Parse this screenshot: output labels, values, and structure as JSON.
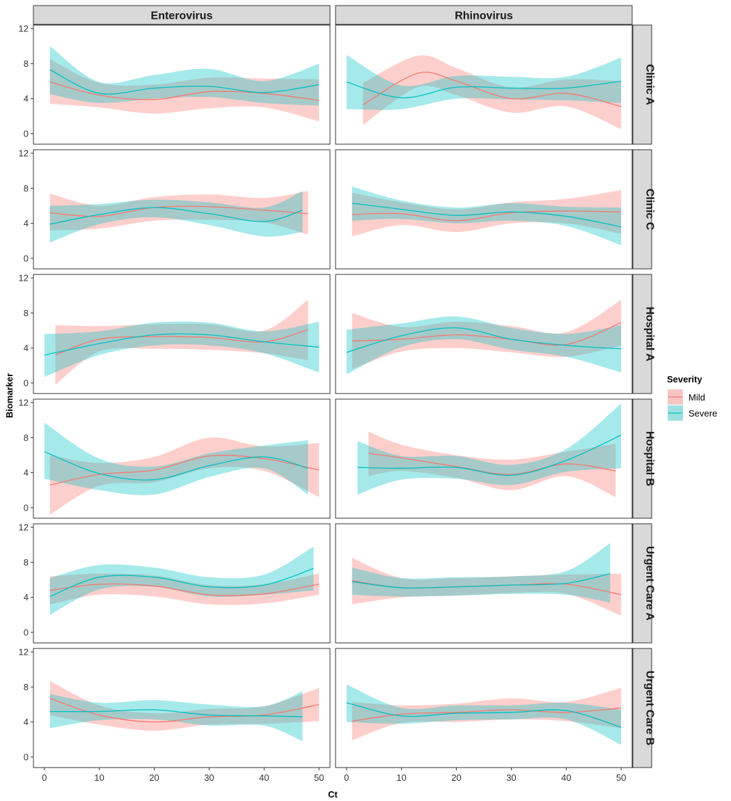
{
  "chart_data": {
    "type": "line",
    "title": "",
    "xlabel": "Ct",
    "ylabel": "Biomarker",
    "xlim": [
      -2,
      52
    ],
    "ylim": [
      -1.2,
      12.4
    ],
    "xticks": [
      0,
      10,
      20,
      30,
      40,
      50
    ],
    "yticks": [
      0,
      4,
      8,
      12
    ],
    "grid": false,
    "columns": [
      "Enterovirus",
      "Rhinovirus"
    ],
    "rows": [
      "Clinic A",
      "Clinic C",
      "Hospital A",
      "Hospital B",
      "Urgent Care A",
      "Urgent Care B"
    ],
    "legend": {
      "title": "Severity",
      "position": "right",
      "entries": [
        {
          "name": "Mild",
          "line_color": "#F8766D",
          "fill_color": "#F8766D"
        },
        {
          "name": "Severe",
          "line_color": "#00BFC4",
          "fill_color": "#00BFC4"
        }
      ]
    },
    "panels": [
      {
        "row": "Clinic A",
        "column": "Enterovirus",
        "series": [
          {
            "name": "Mild",
            "x": [
              1,
              10,
              20,
              30,
              40,
              50
            ],
            "y": [
              5.9,
              4.4,
              3.9,
              4.8,
              4.6,
              3.8
            ],
            "lower": [
              3.4,
              3.0,
              2.3,
              2.9,
              3.0,
              1.4
            ],
            "upper": [
              8.5,
              5.8,
              5.6,
              6.4,
              6.3,
              6.2
            ]
          },
          {
            "name": "Severe",
            "x": [
              1,
              10,
              20,
              30,
              40,
              50
            ],
            "y": [
              7.3,
              4.6,
              5.2,
              5.4,
              4.7,
              5.6
            ],
            "lower": [
              4.5,
              3.5,
              4.0,
              4.2,
              3.5,
              3.2
            ],
            "upper": [
              10.0,
              5.9,
              6.7,
              7.4,
              6.0,
              8.0
            ]
          }
        ]
      },
      {
        "row": "Clinic A",
        "column": "Rhinovirus",
        "series": [
          {
            "name": "Mild",
            "x": [
              3,
              13,
              20,
              30,
              40,
              50
            ],
            "y": [
              3.3,
              6.9,
              6.0,
              4.0,
              4.6,
              3.1
            ],
            "lower": [
              1.0,
              5.3,
              4.4,
              2.4,
              3.1,
              0.5
            ],
            "upper": [
              5.8,
              8.9,
              7.5,
              5.3,
              6.2,
              6.0
            ]
          },
          {
            "name": "Severe",
            "x": [
              0,
              10,
              20,
              30,
              40,
              50
            ],
            "y": [
              5.9,
              4.1,
              5.3,
              5.2,
              5.2,
              6.0
            ],
            "lower": [
              2.8,
              2.8,
              4.0,
              3.9,
              3.8,
              3.5
            ],
            "upper": [
              9.0,
              5.5,
              6.6,
              6.5,
              6.5,
              8.7
            ]
          }
        ]
      },
      {
        "row": "Clinic C",
        "column": "Enterovirus",
        "series": [
          {
            "name": "Mild",
            "x": [
              1,
              10,
              20,
              30,
              40,
              48
            ],
            "y": [
              5.2,
              4.8,
              5.8,
              5.9,
              5.5,
              5.1
            ],
            "lower": [
              3.2,
              3.4,
              4.3,
              4.4,
              4.1,
              2.7
            ],
            "upper": [
              7.4,
              6.0,
              7.0,
              7.3,
              6.9,
              7.7
            ]
          },
          {
            "name": "Severe",
            "x": [
              1,
              10,
              20,
              30,
              40,
              47
            ],
            "y": [
              3.9,
              5.0,
              5.8,
              5.1,
              4.2,
              5.5
            ],
            "lower": [
              1.8,
              3.9,
              4.7,
              3.8,
              2.5,
              3.0
            ],
            "upper": [
              6.0,
              6.2,
              6.7,
              6.4,
              5.8,
              7.7
            ]
          }
        ]
      },
      {
        "row": "Clinic C",
        "column": "Rhinovirus",
        "series": [
          {
            "name": "Mild",
            "x": [
              1,
              10,
              20,
              30,
              40,
              50
            ],
            "y": [
              5.0,
              5.1,
              4.3,
              5.2,
              5.4,
              5.3
            ],
            "lower": [
              2.5,
              3.8,
              3.0,
              4.0,
              4.0,
              2.8
            ],
            "upper": [
              7.5,
              6.4,
              5.6,
              6.4,
              6.8,
              7.8
            ]
          },
          {
            "name": "Severe",
            "x": [
              1,
              10,
              20,
              30,
              40,
              50
            ],
            "y": [
              6.3,
              5.6,
              4.9,
              5.3,
              4.8,
              3.6
            ],
            "lower": [
              4.3,
              4.5,
              4.0,
              4.3,
              3.7,
              1.5
            ],
            "upper": [
              8.2,
              6.6,
              5.8,
              6.3,
              5.9,
              5.8
            ]
          }
        ]
      },
      {
        "row": "Hospital A",
        "column": "Enterovirus",
        "series": [
          {
            "name": "Mild",
            "x": [
              2,
              10,
              20,
              30,
              40,
              48
            ],
            "y": [
              3.2,
              5.0,
              5.3,
              5.2,
              4.7,
              6.1
            ],
            "lower": [
              -0.2,
              3.6,
              3.9,
              3.8,
              3.4,
              2.6
            ],
            "upper": [
              6.6,
              6.5,
              6.7,
              6.7,
              6.0,
              9.5
            ]
          },
          {
            "name": "Severe",
            "x": [
              0,
              10,
              20,
              30,
              40,
              50
            ],
            "y": [
              3.2,
              4.5,
              5.5,
              5.5,
              4.7,
              4.1
            ],
            "lower": [
              0.7,
              3.2,
              4.3,
              4.3,
              3.4,
              1.2
            ],
            "upper": [
              5.6,
              5.9,
              6.9,
              6.9,
              5.9,
              7.0
            ]
          }
        ]
      },
      {
        "row": "Hospital A",
        "column": "Rhinovirus",
        "series": [
          {
            "name": "Mild",
            "x": [
              1,
              10,
              20,
              30,
              40,
              50
            ],
            "y": [
              4.8,
              5.0,
              5.5,
              5.0,
              4.4,
              6.9
            ],
            "lower": [
              1.6,
              3.6,
              4.0,
              3.5,
              3.0,
              4.3
            ],
            "upper": [
              8.0,
              6.4,
              7.0,
              6.5,
              5.8,
              9.5
            ]
          },
          {
            "name": "Severe",
            "x": [
              0,
              10,
              20,
              30,
              40,
              50
            ],
            "y": [
              3.5,
              5.4,
              6.3,
              5.0,
              4.3,
              3.9
            ],
            "lower": [
              1.0,
              4.1,
              5.0,
              3.8,
              3.0,
              1.2
            ],
            "upper": [
              6.1,
              6.8,
              7.6,
              6.3,
              5.6,
              6.6
            ]
          }
        ]
      },
      {
        "row": "Hospital B",
        "column": "Enterovirus",
        "series": [
          {
            "name": "Mild",
            "x": [
              1,
              10,
              20,
              30,
              40,
              50
            ],
            "y": [
              2.6,
              3.8,
              4.3,
              5.9,
              5.6,
              4.3
            ],
            "lower": [
              -0.8,
              2.5,
              2.9,
              4.5,
              4.2,
              1.2
            ],
            "upper": [
              6.0,
              5.1,
              5.8,
              8.0,
              7.0,
              7.4
            ]
          },
          {
            "name": "Severe",
            "x": [
              0,
              10,
              20,
              30,
              40,
              48
            ],
            "y": [
              6.4,
              3.9,
              3.2,
              4.8,
              5.8,
              4.5
            ],
            "lower": [
              3.3,
              2.0,
              1.5,
              3.5,
              4.5,
              1.5
            ],
            "upper": [
              9.7,
              5.6,
              4.7,
              6.2,
              7.1,
              7.7
            ]
          }
        ]
      },
      {
        "row": "Hospital B",
        "column": "Rhinovirus",
        "series": [
          {
            "name": "Mild",
            "x": [
              4,
              10,
              20,
              30,
              40,
              49
            ],
            "y": [
              6.2,
              5.7,
              4.7,
              3.8,
              5.0,
              4.2
            ],
            "lower": [
              3.6,
              4.2,
              3.4,
              2.0,
              3.6,
              1.2
            ],
            "upper": [
              8.7,
              7.2,
              6.0,
              5.5,
              6.4,
              7.3
            ]
          },
          {
            "name": "Severe",
            "x": [
              2,
              10,
              20,
              30,
              40,
              50
            ],
            "y": [
              4.6,
              4.5,
              4.6,
              3.7,
              5.4,
              8.3
            ],
            "lower": [
              1.5,
              3.2,
              3.3,
              2.6,
              4.1,
              4.5
            ],
            "upper": [
              7.6,
              5.9,
              5.9,
              4.9,
              6.7,
              11.9
            ]
          }
        ]
      },
      {
        "row": "Urgent Care A",
        "column": "Enterovirus",
        "series": [
          {
            "name": "Mild",
            "x": [
              1,
              10,
              20,
              30,
              40,
              50
            ],
            "y": [
              4.8,
              5.5,
              5.3,
              4.3,
              4.4,
              5.5
            ],
            "lower": [
              3.2,
              4.3,
              4.1,
              3.2,
              3.3,
              4.3
            ],
            "upper": [
              6.4,
              6.7,
              6.5,
              5.4,
              5.5,
              6.7
            ]
          },
          {
            "name": "Severe",
            "x": [
              1,
              10,
              20,
              30,
              40,
              49
            ],
            "y": [
              4.1,
              6.3,
              6.3,
              5.2,
              5.4,
              7.3
            ],
            "lower": [
              2.0,
              4.9,
              5.2,
              4.1,
              4.3,
              4.8
            ],
            "upper": [
              6.2,
              7.7,
              7.4,
              6.3,
              6.6,
              9.8
            ]
          }
        ]
      },
      {
        "row": "Urgent Care A",
        "column": "Rhinovirus",
        "series": [
          {
            "name": "Mild",
            "x": [
              1,
              10,
              20,
              30,
              40,
              50
            ],
            "y": [
              5.9,
              5.1,
              5.2,
              5.4,
              5.5,
              4.3
            ],
            "lower": [
              3.2,
              4.0,
              4.2,
              4.5,
              4.4,
              1.9
            ],
            "upper": [
              8.5,
              6.2,
              6.2,
              6.4,
              6.6,
              6.7
            ]
          },
          {
            "name": "Severe",
            "x": [
              1,
              10,
              20,
              30,
              40,
              48
            ],
            "y": [
              5.8,
              5.1,
              5.2,
              5.4,
              5.6,
              6.7
            ],
            "lower": [
              4.3,
              4.1,
              4.2,
              4.4,
              4.3,
              3.4
            ],
            "upper": [
              7.4,
              6.2,
              6.3,
              6.4,
              7.0,
              10.2
            ]
          }
        ]
      },
      {
        "row": "Urgent Care B",
        "column": "Enterovirus",
        "series": [
          {
            "name": "Mild",
            "x": [
              1,
              10,
              20,
              30,
              40,
              50
            ],
            "y": [
              6.7,
              4.8,
              4.0,
              4.6,
              4.8,
              6.0
            ],
            "lower": [
              4.8,
              3.7,
              3.0,
              3.7,
              3.8,
              4.1
            ],
            "upper": [
              8.7,
              5.9,
              5.0,
              5.5,
              5.8,
              7.9
            ]
          },
          {
            "name": "Severe",
            "x": [
              1,
              10,
              20,
              30,
              40,
              47
            ],
            "y": [
              5.2,
              5.2,
              5.4,
              4.8,
              4.7,
              4.6
            ],
            "lower": [
              3.3,
              4.2,
              4.3,
              3.6,
              3.6,
              1.8
            ],
            "upper": [
              7.2,
              6.2,
              6.5,
              6.0,
              5.8,
              7.5
            ]
          }
        ]
      },
      {
        "row": "Urgent Care B",
        "column": "Rhinovirus",
        "series": [
          {
            "name": "Mild",
            "x": [
              1,
              10,
              20,
              30,
              40,
              50
            ],
            "y": [
              4.1,
              4.9,
              5.1,
              5.4,
              5.1,
              5.6
            ],
            "lower": [
              1.9,
              3.9,
              4.0,
              4.3,
              4.1,
              3.3
            ],
            "upper": [
              6.3,
              5.9,
              6.1,
              6.7,
              6.3,
              7.9
            ]
          },
          {
            "name": "Severe",
            "x": [
              0,
              10,
              20,
              30,
              40,
              50
            ],
            "y": [
              6.2,
              4.7,
              5.0,
              5.1,
              5.3,
              3.4
            ],
            "lower": [
              4.0,
              3.8,
              4.2,
              4.3,
              4.3,
              1.4
            ],
            "upper": [
              8.3,
              5.6,
              5.9,
              5.9,
              6.2,
              5.4
            ]
          }
        ]
      }
    ]
  }
}
